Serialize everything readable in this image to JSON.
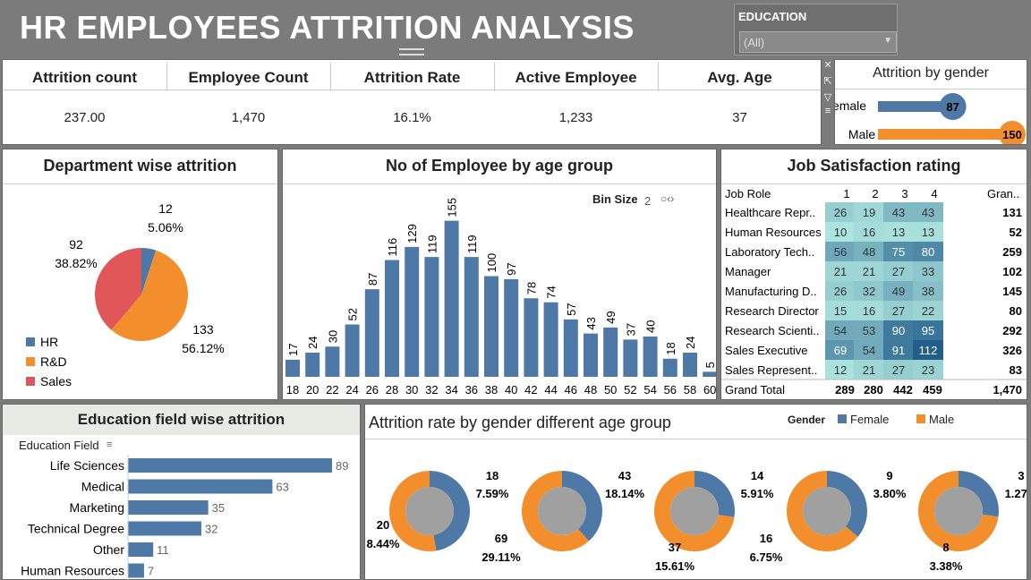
{
  "title": "HR EMPLOYEES ATTRITION ANALYSIS",
  "filter": {
    "label": "EDUCATION",
    "value": "(All)"
  },
  "kpis": [
    {
      "label": "Attrition count",
      "value": "237.00"
    },
    {
      "label": "Employee Count",
      "value": "1,470"
    },
    {
      "label": "Attrition Rate",
      "value": "16.1%"
    },
    {
      "label": "Active Employee",
      "value": "1,233"
    },
    {
      "label": "Avg. Age",
      "value": "37"
    }
  ],
  "colors": {
    "blue": "#4e79a7",
    "orange": "#f28e2b",
    "red": "#e15759",
    "gray": "#a0a0a0"
  },
  "gender_attrition": {
    "title": "Attrition by gender",
    "labels": [
      "emale",
      "Male"
    ],
    "values": [
      87,
      150
    ],
    "value_labels": [
      "87",
      "150"
    ],
    "max": 150
  },
  "department": {
    "title": "Department wise attrition",
    "legend": [
      "HR",
      "R&D",
      "Sales"
    ],
    "values": [
      12,
      133,
      92
    ],
    "pcts": [
      "5.06%",
      "56.12%",
      "38.82%"
    ],
    "counts": [
      "12",
      "133",
      "92"
    ]
  },
  "age_chart": {
    "title": "No of Employee by age group",
    "bin_label": "Bin Size",
    "bin_value": "2",
    "categories": [
      "18",
      "20",
      "22",
      "24",
      "26",
      "28",
      "30",
      "32",
      "34",
      "36",
      "38",
      "40",
      "42",
      "44",
      "46",
      "48",
      "50",
      "52",
      "54",
      "56",
      "58",
      "60"
    ],
    "values": [
      17,
      24,
      30,
      52,
      87,
      116,
      129,
      119,
      155,
      119,
      100,
      97,
      78,
      74,
      57,
      43,
      49,
      37,
      40,
      18,
      24,
      5
    ],
    "ymax": 160
  },
  "job_sat": {
    "title": "Job Satisfaction rating",
    "headers": [
      "Job Role",
      "1",
      "2",
      "3",
      "4",
      "Gran.."
    ],
    "rows": [
      {
        "role": "Healthcare Repr..",
        "v": [
          26,
          19,
          43,
          43
        ],
        "total": "131"
      },
      {
        "role": "Human Resources",
        "v": [
          10,
          16,
          13,
          13
        ],
        "total": "52"
      },
      {
        "role": "Laboratory Tech..",
        "v": [
          56,
          48,
          75,
          80
        ],
        "total": "259"
      },
      {
        "role": "Manager",
        "v": [
          21,
          21,
          27,
          33
        ],
        "total": "102"
      },
      {
        "role": "Manufacturing D..",
        "v": [
          26,
          32,
          49,
          38
        ],
        "total": "145"
      },
      {
        "role": "Research Director",
        "v": [
          15,
          16,
          27,
          22
        ],
        "total": "80"
      },
      {
        "role": "Research Scienti..",
        "v": [
          54,
          53,
          90,
          95
        ],
        "total": "292"
      },
      {
        "role": "Sales Executive",
        "v": [
          69,
          54,
          91,
          112
        ],
        "total": "326"
      },
      {
        "role": "Sales Represent..",
        "v": [
          12,
          21,
          27,
          23
        ],
        "total": "83"
      }
    ],
    "grand": {
      "label": "Grand Total",
      "v": [
        "289",
        "280",
        "442",
        "459"
      ],
      "total": "1,470"
    }
  },
  "edu_field": {
    "title": "Education field wise attrition",
    "axis_label": "Education Field",
    "categories": [
      "Life Sciences",
      "Medical",
      "Marketing",
      "Technical Degree",
      "Other",
      "Human Resources"
    ],
    "values": [
      89,
      63,
      35,
      32,
      11,
      7
    ],
    "max": 89
  },
  "gender_age": {
    "title": "Attrition rate by gender different age group",
    "legend_title": "Gender",
    "legend": [
      "Female",
      "Male"
    ],
    "groups": [
      {
        "female": 18,
        "female_pct": "7.59%",
        "male": 20,
        "male_pct": "8.44%"
      },
      {
        "female": 43,
        "female_pct": "18.14%",
        "male": 69,
        "male_pct": "29.11%"
      },
      {
        "female": 14,
        "female_pct": "5.91%",
        "male": 37,
        "male_pct": "15.61%"
      },
      {
        "female": 9,
        "female_pct": "3.80%",
        "male": 16,
        "male_pct": "6.75%"
      },
      {
        "female": 3,
        "female_pct": "1.27%",
        "male": 8,
        "male_pct": "3.38%"
      }
    ]
  }
}
